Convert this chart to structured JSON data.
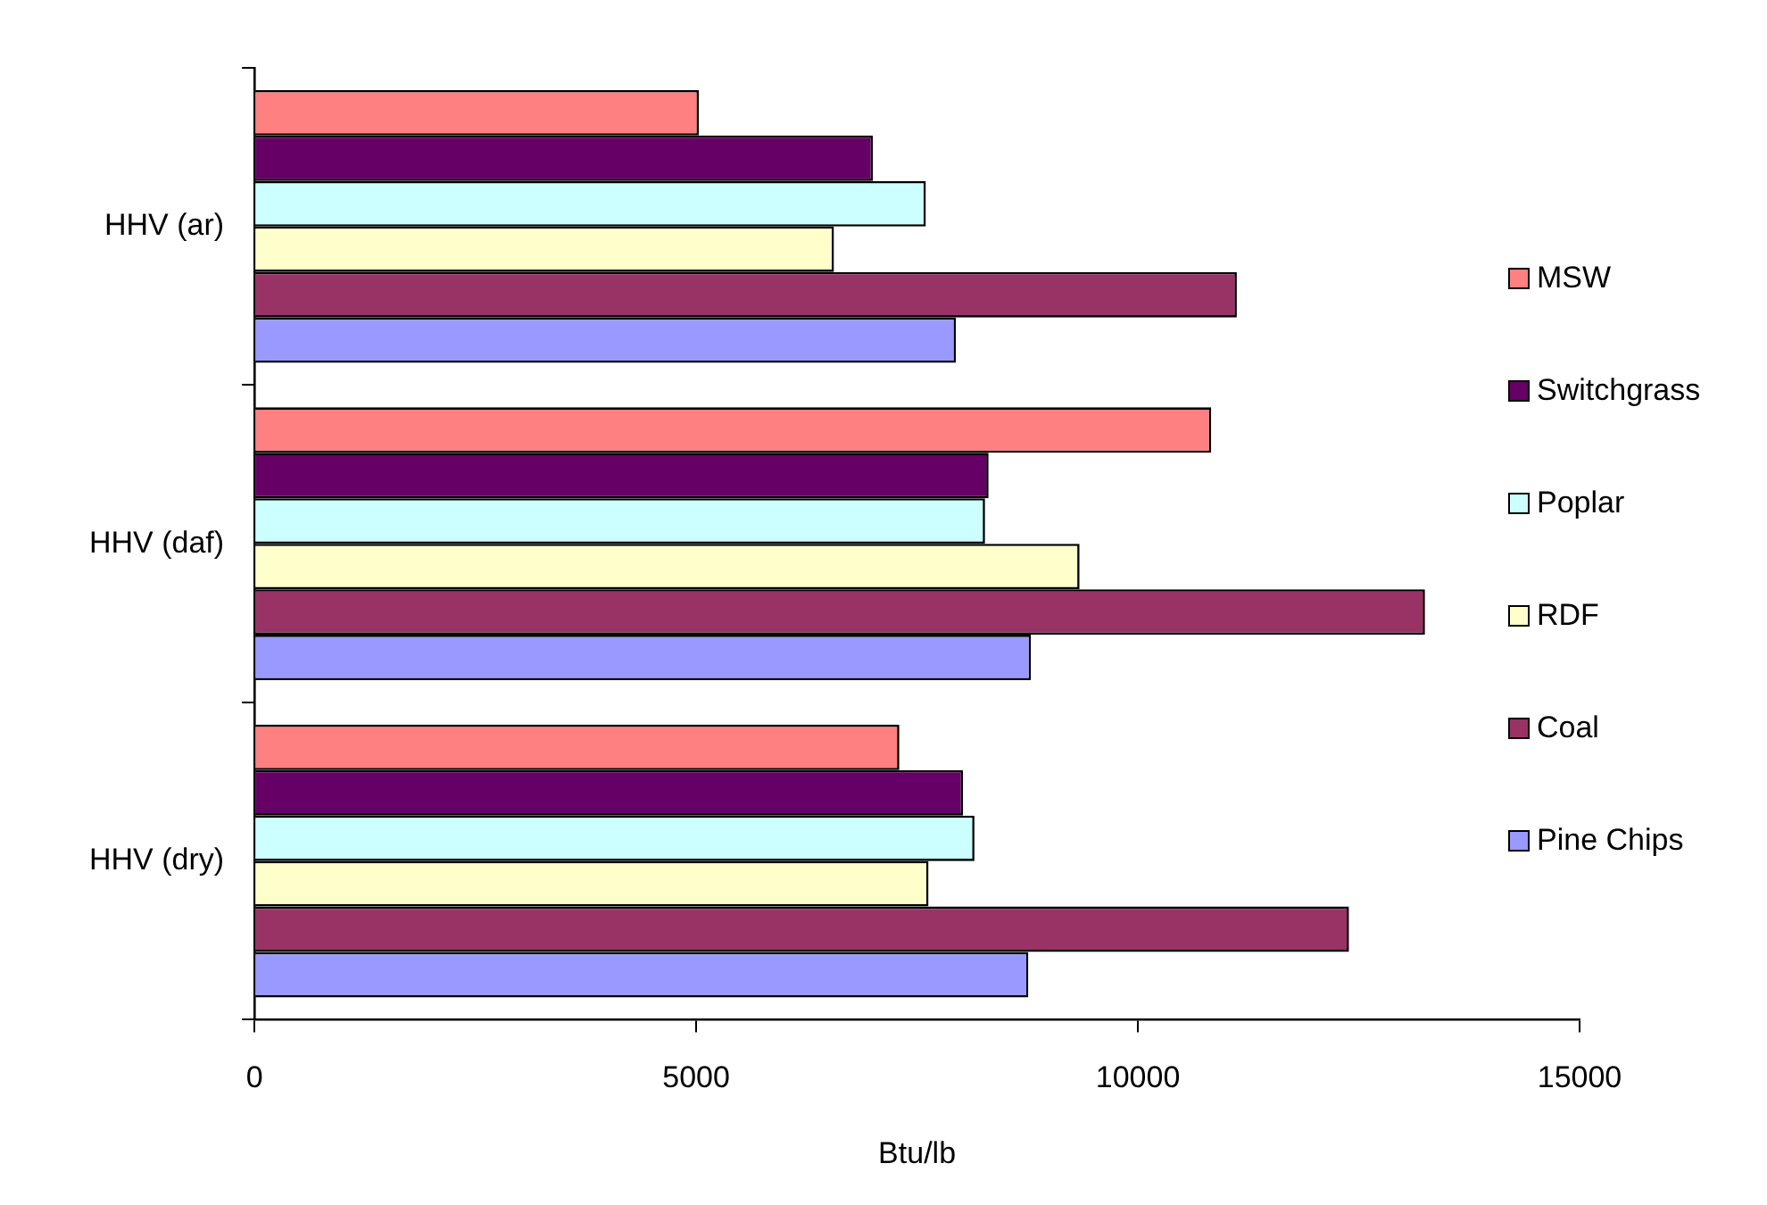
{
  "chart_data": {
    "type": "bar",
    "orientation": "horizontal",
    "xlabel": "Btu/lb",
    "categories": [
      "HHV (ar)",
      "HHV (daf)",
      "HHV (dry)"
    ],
    "series": [
      {
        "name": "MSW",
        "color": "#ff8080",
        "values": [
          5030,
          10830,
          7300
        ]
      },
      {
        "name": "Switchgrass",
        "color": "#660066",
        "values": [
          7000,
          8310,
          8020
        ]
      },
      {
        "name": "Poplar",
        "color": "#ccffff",
        "values": [
          7600,
          8270,
          8150
        ]
      },
      {
        "name": "RDF",
        "color": "#ffffcc",
        "values": [
          6560,
          9340,
          7630
        ]
      },
      {
        "name": "Coal",
        "color": "#993366",
        "values": [
          11120,
          13250,
          12390
        ]
      },
      {
        "name": "Pine Chips",
        "color": "#9999ff",
        "values": [
          7940,
          8790,
          8760
        ]
      }
    ],
    "xlim": [
      0,
      15000
    ],
    "xticks": [
      0,
      5000,
      10000,
      15000
    ],
    "grid": false,
    "legend": "right"
  }
}
